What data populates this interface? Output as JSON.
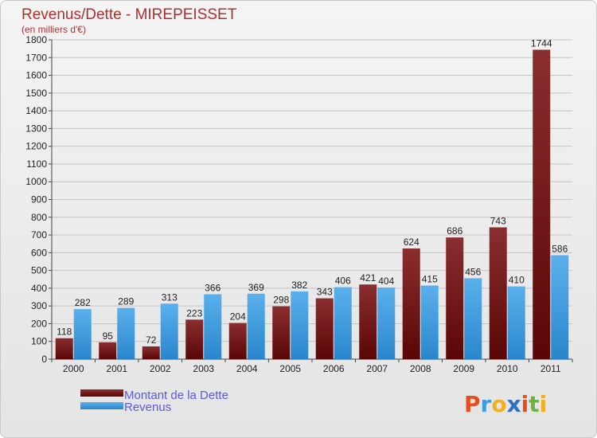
{
  "chart_data": {
    "type": "bar",
    "title": "Revenus/Dette - MIREPEISSET",
    "subtitle": "(en milliers d'€)",
    "categories": [
      "2000",
      "2001",
      "2002",
      "2003",
      "2004",
      "2005",
      "2006",
      "2007",
      "2008",
      "2009",
      "2010",
      "2011"
    ],
    "series": [
      {
        "name": "Montant de la Dette",
        "color": "#7a1a1a",
        "values": [
          118,
          95,
          72,
          223,
          204,
          298,
          343,
          421,
          624,
          686,
          743,
          1744
        ]
      },
      {
        "name": "Revenus",
        "color": "#3d9ae0",
        "values": [
          282,
          289,
          313,
          366,
          369,
          382,
          406,
          404,
          415,
          456,
          410,
          586
        ]
      }
    ],
    "ylim": [
      0,
      1800
    ],
    "yticks": [
      0,
      100,
      200,
      300,
      400,
      500,
      600,
      700,
      800,
      900,
      1000,
      1100,
      1200,
      1300,
      1400,
      1500,
      1600,
      1700,
      1800
    ],
    "grid": true,
    "legend": "bottom-left"
  },
  "logo": {
    "letters": [
      "P",
      "r",
      "o",
      "x",
      "i",
      "t",
      "i"
    ],
    "colors": [
      "#e84e1b",
      "#3aa0dd",
      "#f2b01e",
      "#2f6fc0",
      "#e84e1b",
      "#6cb33f",
      "#f2b01e"
    ]
  }
}
